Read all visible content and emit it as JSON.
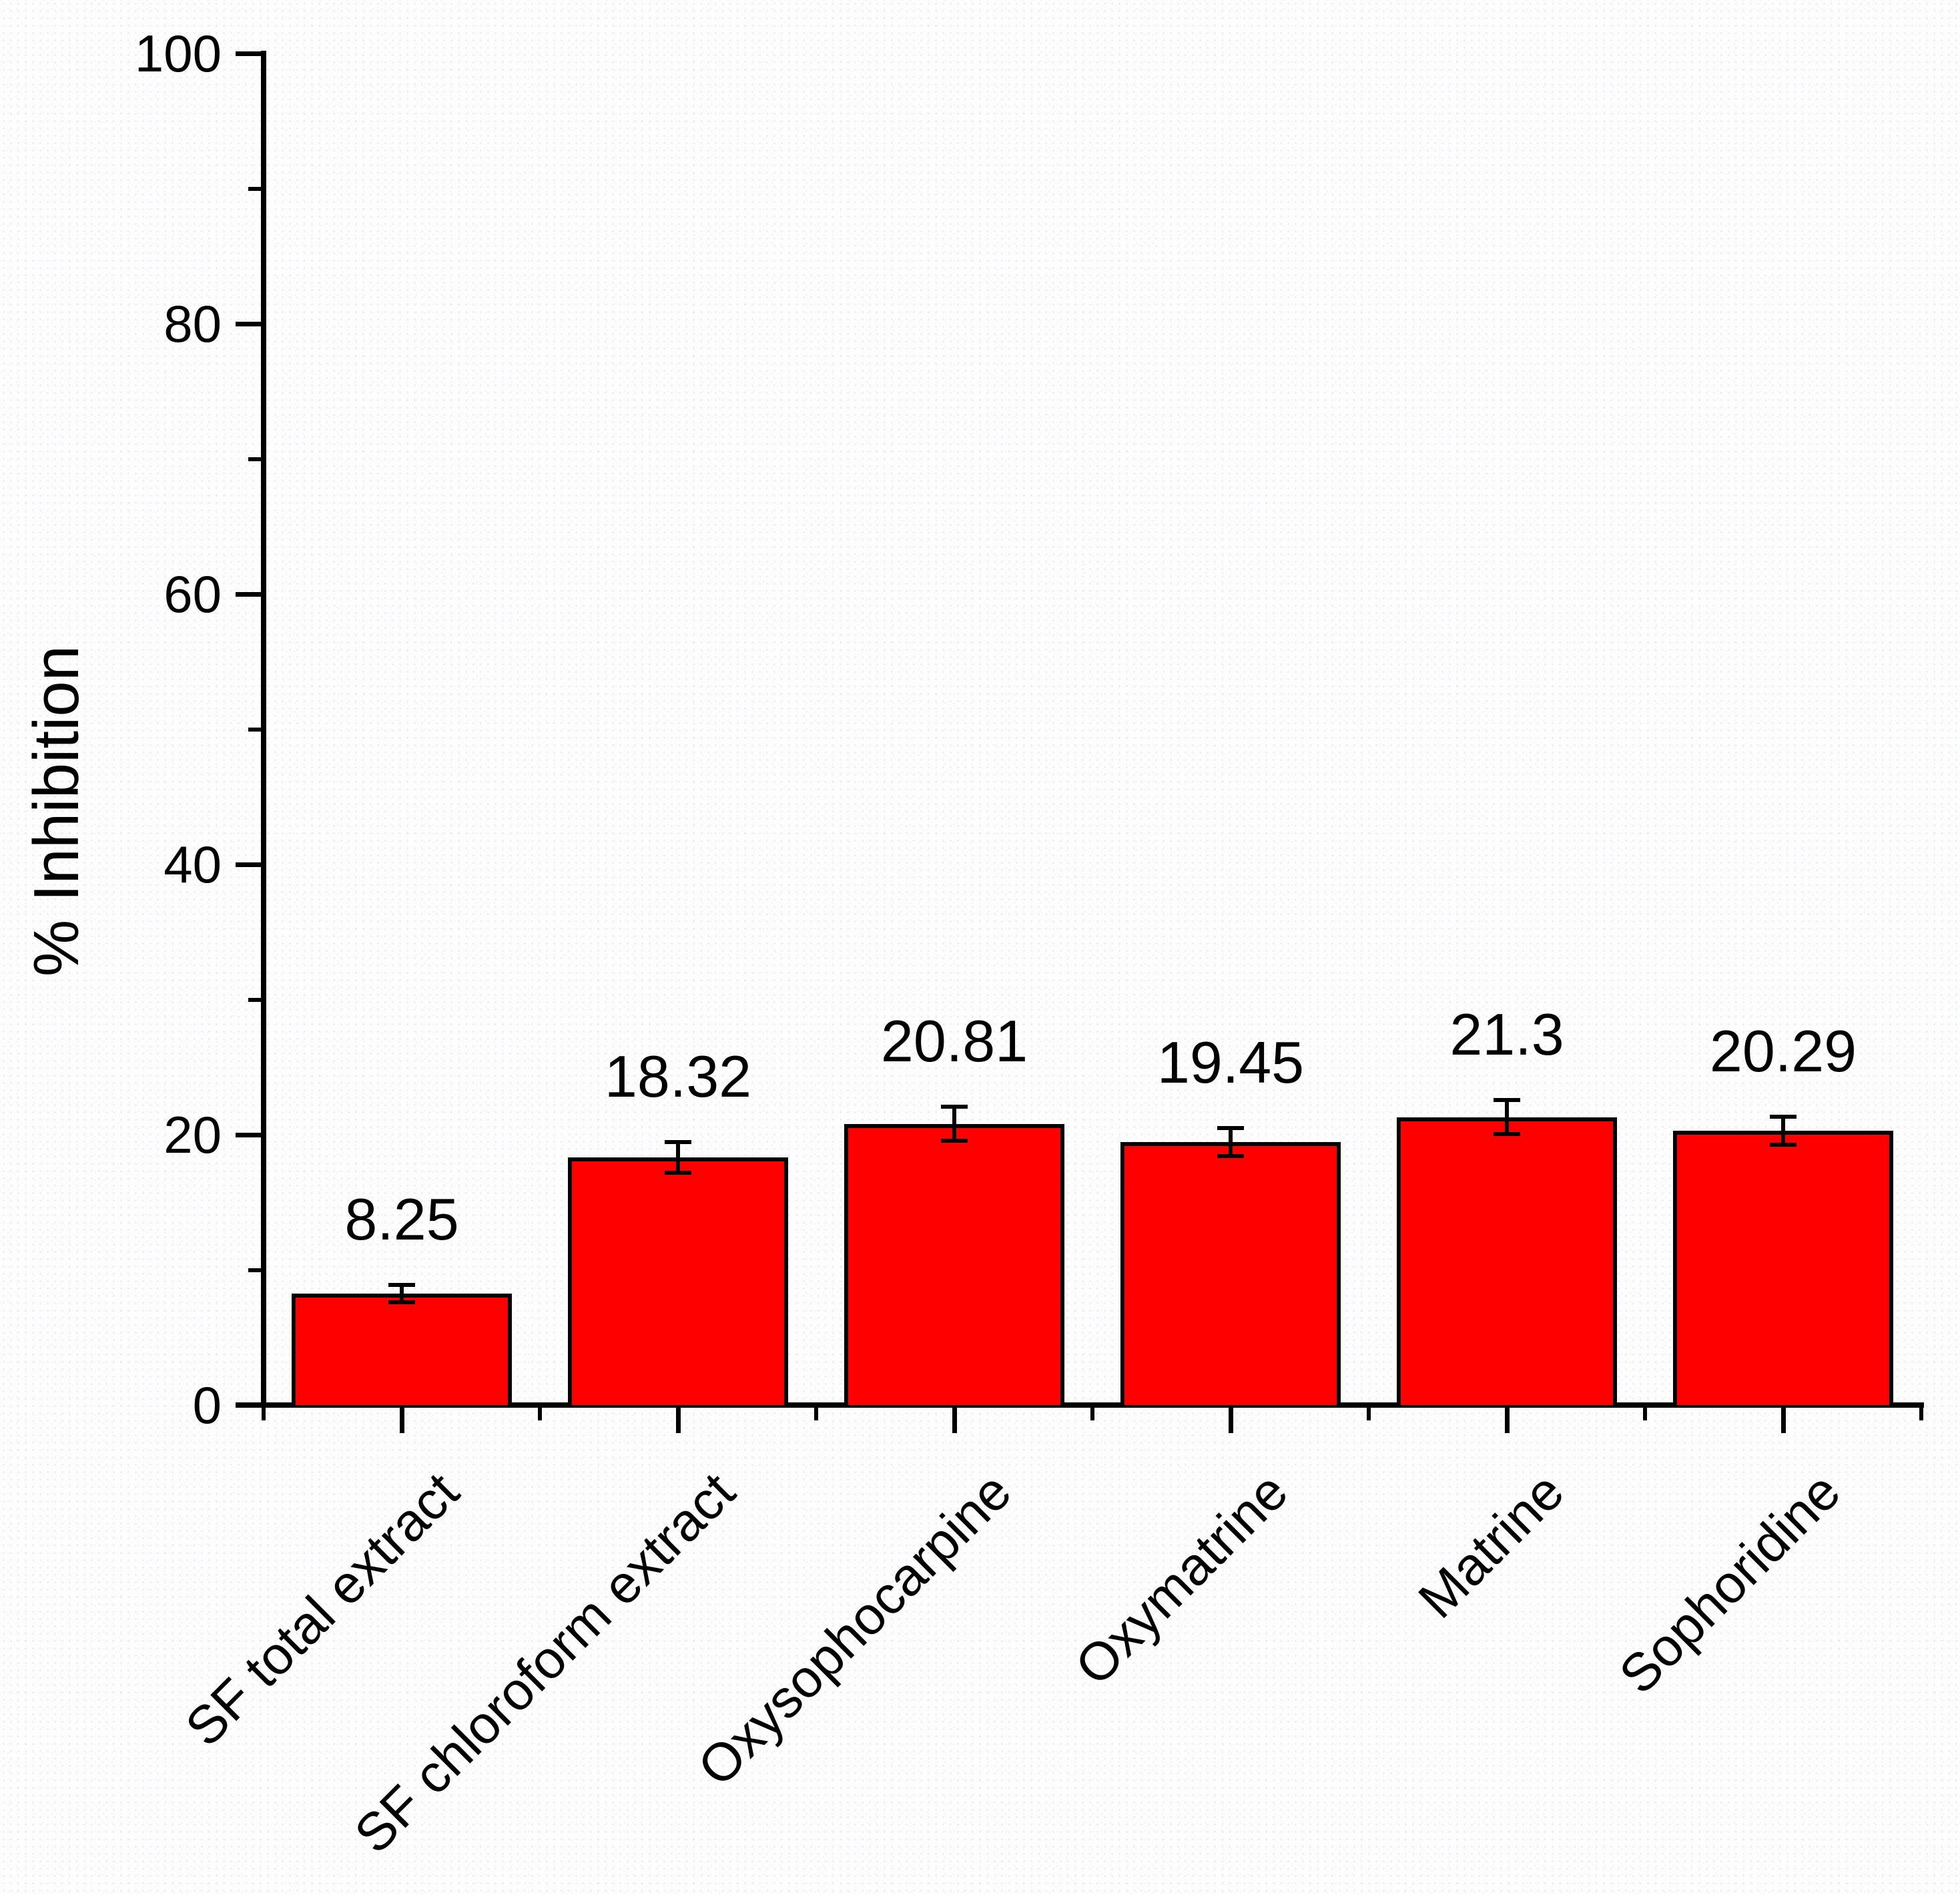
{
  "figure": {
    "background": "#fdfdfd",
    "bar_fill": "#ff0000",
    "bar_stroke": "#000000",
    "axis_color": "#000000",
    "text_color": "#000000"
  },
  "chart_data": {
    "type": "bar",
    "title": "",
    "xlabel": "",
    "ylabel": "% Inhibition",
    "ylim": [
      0,
      100
    ],
    "y_major_ticks": [
      0,
      20,
      40,
      60,
      80,
      100
    ],
    "y_minor_ticks": [
      10,
      30,
      50,
      70,
      90
    ],
    "grid": false,
    "legend_position": "none",
    "categories": [
      "SF total extract",
      "SF chloroform extract",
      "Oxysophocarpine",
      "Oxymatrine",
      "Matrine",
      "Sophoridine"
    ],
    "values": [
      8.25,
      18.32,
      20.81,
      19.45,
      21.3,
      20.29
    ],
    "value_labels": [
      "8.25",
      "18.32",
      "20.81",
      "19.45",
      "21.3",
      "20.29"
    ],
    "errors": [
      0.5,
      1.0,
      1.1,
      0.9,
      1.1,
      0.9
    ]
  }
}
